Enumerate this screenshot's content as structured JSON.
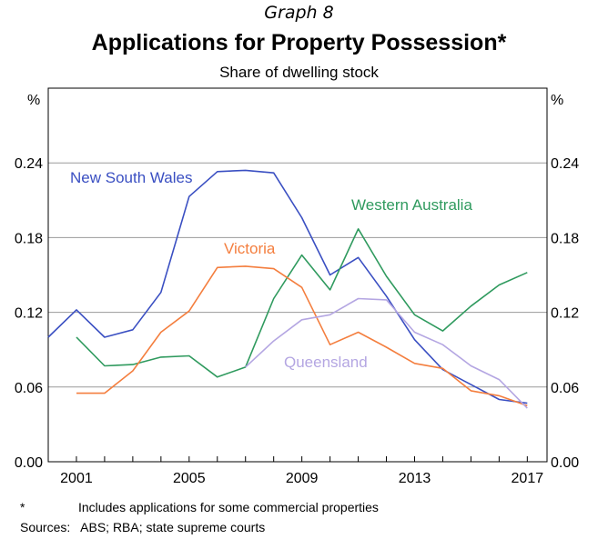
{
  "graph_label": "Graph 8",
  "footnote": {
    "marker": "*",
    "text": "Includes applications for some commercial properties"
  },
  "sources": "Sources:   ABS; RBA; state supreme courts",
  "chart_data": {
    "type": "line",
    "title": "Applications for Property Possession*",
    "subtitle": "Share of dwelling stock",
    "y_unit_left": "%",
    "y_unit_right": "%",
    "ylim": [
      0,
      0.3
    ],
    "yticks": [
      "0.00",
      "0.06",
      "0.12",
      "0.18",
      "0.24"
    ],
    "xlim": [
      2000.0,
      2017.7
    ],
    "xticks": [
      "2001",
      "2005",
      "2009",
      "2013",
      "2017"
    ],
    "grid": "horizontal",
    "legend": "inline labels",
    "series": [
      {
        "name": "New South Wales",
        "color": "#3a4fc2",
        "x": [
          2000,
          2001,
          2002,
          2003,
          2004,
          2005,
          2006,
          2007,
          2008,
          2009,
          2010,
          2011,
          2012,
          2013,
          2014,
          2015,
          2016,
          2017
        ],
        "values": [
          0.1,
          0.122,
          0.1,
          0.106,
          0.136,
          0.213,
          0.233,
          0.234,
          0.232,
          0.196,
          0.15,
          0.164,
          0.133,
          0.098,
          0.074,
          0.062,
          0.05,
          0.047
        ]
      },
      {
        "name": "Western Australia",
        "color": "#2f9a5e",
        "x": [
          2001,
          2002,
          2003,
          2004,
          2005,
          2006,
          2007,
          2008,
          2009,
          2010,
          2011,
          2012,
          2013,
          2014,
          2015,
          2016,
          2017
        ],
        "values": [
          0.1,
          0.077,
          0.078,
          0.084,
          0.085,
          0.068,
          0.076,
          0.131,
          0.166,
          0.138,
          0.187,
          0.149,
          0.118,
          0.105,
          0.125,
          0.142,
          0.152
        ]
      },
      {
        "name": "Victoria",
        "color": "#f47e3e",
        "x": [
          2001,
          2002,
          2003,
          2004,
          2005,
          2006,
          2007,
          2008,
          2009,
          2010,
          2011,
          2012,
          2013,
          2014,
          2015,
          2016,
          2017
        ],
        "values": [
          0.055,
          0.055,
          0.073,
          0.104,
          0.121,
          0.156,
          0.157,
          0.155,
          0.14,
          0.094,
          0.104,
          0.092,
          0.079,
          0.075,
          0.057,
          0.053,
          0.045
        ]
      },
      {
        "name": "Queensland",
        "color": "#b4a6e2",
        "x": [
          2007,
          2008,
          2009,
          2010,
          2011,
          2012,
          2013,
          2014,
          2015,
          2016,
          2017
        ],
        "values": [
          0.076,
          0.097,
          0.114,
          0.118,
          0.131,
          0.13,
          0.104,
          0.094,
          0.077,
          0.066,
          0.043
        ]
      }
    ]
  }
}
